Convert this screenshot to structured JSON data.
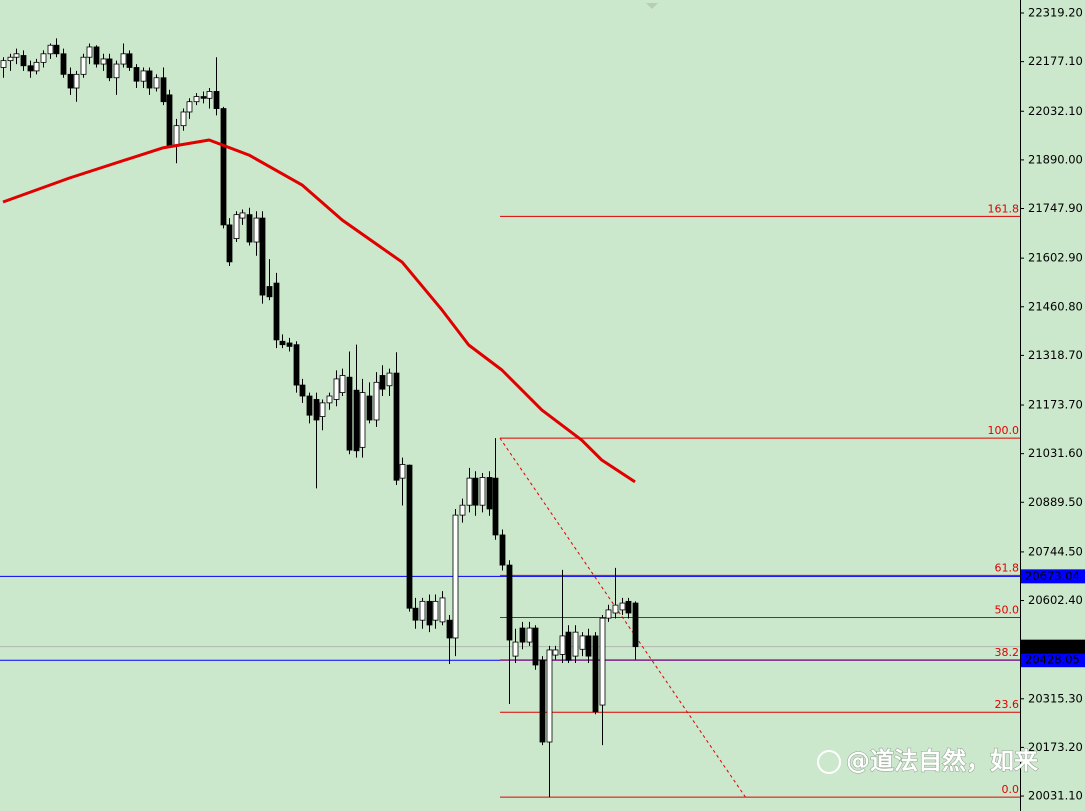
{
  "chart_data": {
    "type": "candlestick",
    "ylim": [
      19987.4,
      22357.2
    ],
    "yticks": [
      {
        "value": 22319.2,
        "label": "22319.20"
      },
      {
        "value": 22177.1,
        "label": "22177.10"
      },
      {
        "value": 22032.1,
        "label": "22032.10"
      },
      {
        "value": 21890,
        "label": "21890.00"
      },
      {
        "value": 21747.9,
        "label": "21747.90"
      },
      {
        "value": 21602.9,
        "label": "21602.90"
      },
      {
        "value": 21460.8,
        "label": "21460.80"
      },
      {
        "value": 21318.7,
        "label": "21318.70"
      },
      {
        "value": 21173.7,
        "label": "21173.70"
      },
      {
        "value": 21031.6,
        "label": "21031.60"
      },
      {
        "value": 20889.5,
        "label": "20889.50"
      },
      {
        "value": 20744.5,
        "label": "20744.50"
      },
      {
        "value": 20602.4,
        "label": "20602.40"
      },
      {
        "value": 20315.3,
        "label": "20315.30"
      },
      {
        "value": 20173.2,
        "label": "20173.20"
      },
      {
        "value": 20031.1,
        "label": "20031.10"
      }
    ],
    "up_color": "#ffffff",
    "down_color": "#000000",
    "ohlc": [
      [
        22160,
        22190,
        22130,
        22180
      ],
      [
        22180,
        22200,
        22150,
        22190
      ],
      [
        22190,
        22215,
        22170,
        22200
      ],
      [
        22195,
        22210,
        22150,
        22165
      ],
      [
        22165,
        22180,
        22130,
        22150
      ],
      [
        22150,
        22185,
        22140,
        22175
      ],
      [
        22175,
        22210,
        22160,
        22200
      ],
      [
        22200,
        22230,
        22185,
        22225
      ],
      [
        22225,
        22245,
        22190,
        22200
      ],
      [
        22200,
        22215,
        22130,
        22140
      ],
      [
        22140,
        22160,
        22080,
        22100
      ],
      [
        22100,
        22150,
        22060,
        22140
      ],
      [
        22140,
        22200,
        22130,
        22190
      ],
      [
        22190,
        22230,
        22170,
        22220
      ],
      [
        22220,
        22225,
        22160,
        22170
      ],
      [
        22170,
        22200,
        22150,
        22185
      ],
      [
        22185,
        22200,
        22120,
        22130
      ],
      [
        22130,
        22180,
        22080,
        22170
      ],
      [
        22170,
        22230,
        22160,
        22200
      ],
      [
        22200,
        22210,
        22150,
        22160
      ],
      [
        22160,
        22170,
        22100,
        22120
      ],
      [
        22120,
        22160,
        22100,
        22150
      ],
      [
        22150,
        22160,
        22080,
        22100
      ],
      [
        22100,
        22140,
        22090,
        22130
      ],
      [
        22130,
        22160,
        22050,
        22060
      ],
      [
        22080,
        22095,
        21925,
        21930
      ],
      [
        21930,
        22010,
        21880,
        21990
      ],
      [
        21990,
        22040,
        21975,
        22030
      ],
      [
        22030,
        22070,
        22010,
        22060
      ],
      [
        22060,
        22085,
        22050,
        22075
      ],
      [
        22075,
        22090,
        22055,
        22070
      ],
      [
        22070,
        22100,
        22040,
        22090
      ],
      [
        22090,
        22190,
        22020,
        22040
      ],
      [
        22040,
        22045,
        21690,
        21700
      ],
      [
        21700,
        21720,
        21580,
        21592
      ],
      [
        21660,
        21740,
        21650,
        21730
      ],
      [
        21720,
        21745,
        21700,
        21735
      ],
      [
        21730,
        21750,
        21640,
        21650
      ],
      [
        21650,
        21740,
        21610,
        21720
      ],
      [
        21720,
        21740,
        21470,
        21495
      ],
      [
        21520,
        21600,
        21480,
        21490
      ],
      [
        21530,
        21560,
        21340,
        21364
      ],
      [
        21360,
        21380,
        21340,
        21350
      ],
      [
        21355,
        21370,
        21330,
        21345
      ],
      [
        21350,
        21360,
        21210,
        21232
      ],
      [
        21232,
        21250,
        21180,
        21200
      ],
      [
        21200,
        21210,
        21120,
        21144
      ],
      [
        21190,
        21210,
        20930,
        21130
      ],
      [
        21140,
        21190,
        21100,
        21180
      ],
      [
        21180,
        21210,
        21160,
        21200
      ],
      [
        21190,
        21275,
        21170,
        21250
      ],
      [
        21210,
        21280,
        21200,
        21260
      ],
      [
        21255,
        21330,
        21030,
        21042
      ],
      [
        21217,
        21350,
        21020,
        21040
      ],
      [
        21050,
        21250,
        21020,
        21210
      ],
      [
        21200,
        21240,
        21120,
        21130
      ],
      [
        21130,
        21270,
        21110,
        21240
      ],
      [
        21260,
        21290,
        21200,
        21220
      ],
      [
        21230,
        21280,
        21200,
        21267
      ],
      [
        21267,
        21328,
        20940,
        20954
      ],
      [
        20960,
        21020,
        20880,
        21000
      ],
      [
        20998,
        21000,
        20570,
        20580
      ],
      [
        20580,
        20610,
        20520,
        20545
      ],
      [
        20545,
        20610,
        20520,
        20600
      ],
      [
        20600,
        20620,
        20510,
        20531
      ],
      [
        20545,
        20620,
        20520,
        20600
      ],
      [
        20540,
        20630,
        20530,
        20610
      ],
      [
        20545,
        20560,
        20417,
        20493
      ],
      [
        20493,
        20870,
        20440,
        20852
      ],
      [
        20852,
        20900,
        20830,
        20881
      ],
      [
        20881,
        20990,
        20860,
        20960
      ],
      [
        20960,
        20980,
        20850,
        20881
      ],
      [
        20881,
        20975,
        20860,
        20962
      ],
      [
        20962,
        20980,
        20850,
        20870
      ],
      [
        20960,
        21077,
        20780,
        20794
      ],
      [
        20794,
        20810,
        20690,
        20706
      ],
      [
        20706,
        20720,
        20300,
        20487
      ],
      [
        20440,
        20520,
        20420,
        20481
      ],
      [
        20522,
        20540,
        20460,
        20481
      ],
      [
        20481,
        20540,
        20470,
        20522
      ],
      [
        20522,
        20530,
        20400,
        20414
      ],
      [
        20428,
        20440,
        20180,
        20189
      ],
      [
        20189,
        20470,
        20028,
        20458
      ],
      [
        20443,
        20470,
        20430,
        20458
      ],
      [
        20445,
        20692,
        20420,
        20499
      ],
      [
        20510,
        20530,
        20420,
        20428
      ],
      [
        20440,
        20530,
        20420,
        20510
      ],
      [
        20460,
        20510,
        20440,
        20499
      ],
      [
        20499,
        20520,
        20420,
        20440
      ],
      [
        20499,
        20510,
        20270,
        20277
      ],
      [
        20297,
        20560,
        20180,
        20551
      ],
      [
        20551,
        20590,
        20540,
        20575
      ],
      [
        20566,
        20698,
        20550,
        20589
      ],
      [
        20575,
        20610,
        20560,
        20595
      ],
      [
        20600,
        20610,
        20550,
        20566
      ],
      [
        20595,
        20600,
        20430,
        20467.6
      ]
    ],
    "ma": {
      "color": "#e00000",
      "x": [
        0,
        10,
        24,
        31,
        37,
        45,
        51,
        60,
        66,
        70,
        75,
        81,
        87,
        90,
        95
      ],
      "values": [
        21767,
        21837,
        21925,
        21948,
        21904,
        21816,
        21714,
        21591,
        21451,
        21349,
        21276,
        21159,
        21071,
        21013,
        20949
      ]
    },
    "fib_color": "#e00000",
    "fib_levels": [
      {
        "label": "161.8",
        "price": 21725
      },
      {
        "label": "100.0",
        "price": 21077
      },
      {
        "label": "61.8",
        "price": 20676
      },
      {
        "label": "50.0",
        "price": 20553
      },
      {
        "label": "38.2",
        "price": 20429
      },
      {
        "label": "23.6",
        "price": 20276
      },
      {
        "label": "0.0",
        "price": 20028
      }
    ],
    "trendline": {
      "x": [
        74.7,
        111.6
      ],
      "values": [
        21077,
        20028
      ]
    },
    "price_lines": [
      {
        "value": 20673.04,
        "label": "20673.04",
        "color": "#0000ff"
      },
      {
        "value": 20428.05,
        "label": "20428.05",
        "color": "#0000ff"
      }
    ],
    "current_price": {
      "value": 20467.6,
      "label": "20467.60",
      "color": "#000000"
    },
    "watermark": "@道法自然，如来"
  }
}
